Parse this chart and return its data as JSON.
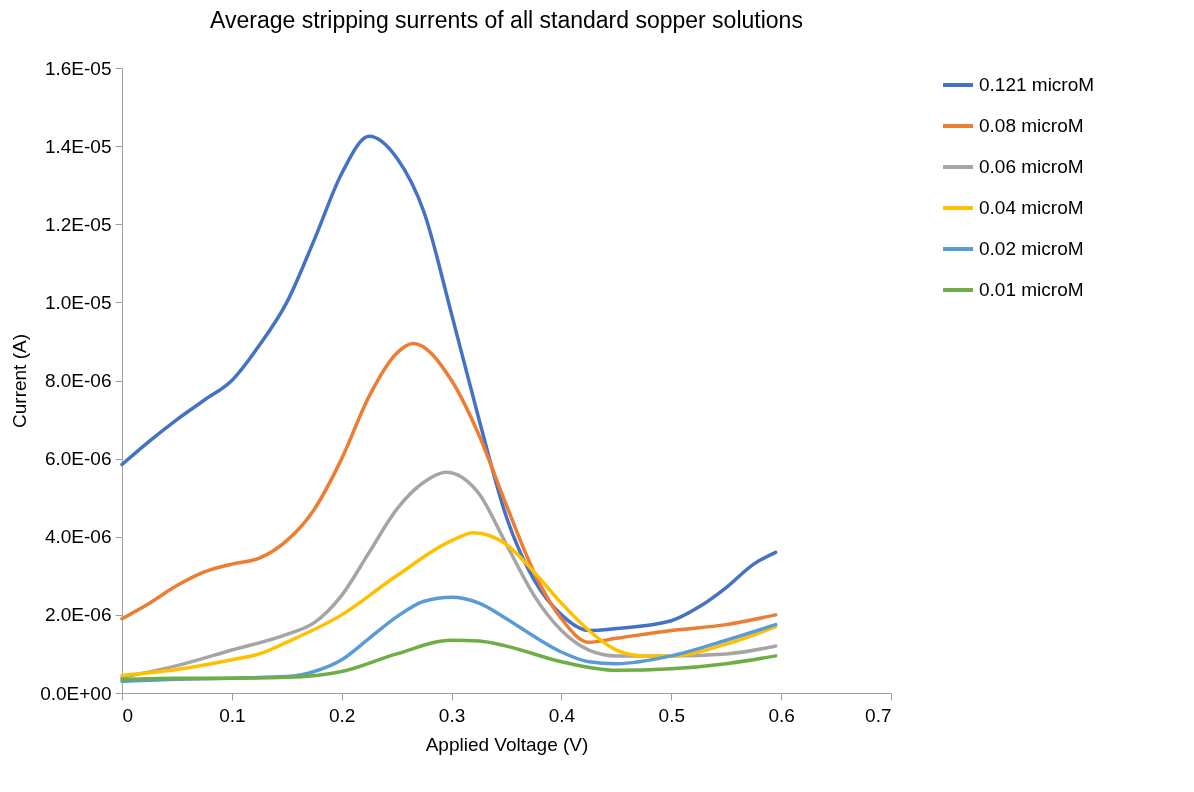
{
  "chart_data": {
    "type": "line",
    "title": "Average stripping surrents of all standard sopper solutions",
    "xlabel": "Applied Voltage (V)",
    "ylabel": "Current (A)",
    "xlim": [
      0,
      0.7
    ],
    "xticks": [
      0,
      0.1,
      0.2,
      0.3,
      0.4,
      0.5,
      0.6,
      0.7
    ],
    "ylim": [
      0,
      1.6e-05
    ],
    "yticks": [
      {
        "value": 0,
        "label": "0.0E+00"
      },
      {
        "value": 2e-06,
        "label": "2.0E-06"
      },
      {
        "value": 4e-06,
        "label": "4.0E-06"
      },
      {
        "value": 6e-06,
        "label": "6.0E-06"
      },
      {
        "value": 8e-06,
        "label": "8.0E-06"
      },
      {
        "value": 1e-05,
        "label": "1.0E-05"
      },
      {
        "value": 1.2e-05,
        "label": "1.2E-05"
      },
      {
        "value": 1.4e-05,
        "label": "1.4E-05"
      },
      {
        "value": 1.6e-05,
        "label": "1.6E-05"
      }
    ],
    "grid": false,
    "legend": "right",
    "marker": "none",
    "line_style": "solid",
    "series": [
      {
        "name": "0.121 microM",
        "color": "#4472c4",
        "x": [
          0,
          0.025,
          0.05,
          0.075,
          0.1,
          0.125,
          0.15,
          0.175,
          0.2,
          0.225,
          0.25,
          0.275,
          0.3,
          0.325,
          0.35,
          0.375,
          0.4,
          0.425,
          0.45,
          0.5,
          0.525,
          0.55,
          0.575,
          0.595
        ],
        "values": [
          5.85e-06,
          6.45e-06,
          7e-06,
          7.5e-06,
          8e-06,
          8.9e-06,
          1e-05,
          1.16e-05,
          1.33e-05,
          1.425e-05,
          1.37e-05,
          1.23e-05,
          9.7e-06,
          7e-06,
          4.5e-06,
          2.9e-06,
          2e-06,
          1.6e-06,
          1.65e-06,
          1.85e-06,
          2.2e-06,
          2.7e-06,
          3.3e-06,
          3.6e-06
        ]
      },
      {
        "name": "0.08 microM",
        "color": "#ed7d31",
        "x": [
          0,
          0.025,
          0.05,
          0.075,
          0.1,
          0.125,
          0.15,
          0.175,
          0.2,
          0.225,
          0.25,
          0.265,
          0.3,
          0.325,
          0.35,
          0.375,
          0.4,
          0.425,
          0.45,
          0.5,
          0.55,
          0.595
        ],
        "values": [
          1.9e-06,
          2.3e-06,
          2.75e-06,
          3.1e-06,
          3.3e-06,
          3.45e-06,
          3.9e-06,
          4.7e-06,
          6e-06,
          7.6e-06,
          8.7e-06,
          8.95e-06,
          8e-06,
          6.6e-06,
          4.8e-06,
          3.1e-06,
          1.9e-06,
          1.3e-06,
          1.4e-06,
          1.6e-06,
          1.75e-06,
          2e-06
        ]
      },
      {
        "name": "0.06 microM",
        "color": "#a5a5a5",
        "x": [
          0,
          0.05,
          0.1,
          0.15,
          0.175,
          0.2,
          0.225,
          0.25,
          0.275,
          0.295,
          0.325,
          0.35,
          0.375,
          0.4,
          0.425,
          0.45,
          0.5,
          0.55,
          0.595
        ],
        "values": [
          4e-07,
          7e-07,
          1.1e-06,
          1.5e-06,
          1.8e-06,
          2.5e-06,
          3.6e-06,
          4.7e-06,
          5.4e-06,
          5.65e-06,
          5.1e-06,
          3.8e-06,
          2.5e-06,
          1.6e-06,
          1.1e-06,
          9.5e-07,
          9.5e-07,
          1e-06,
          1.2e-06
        ]
      },
      {
        "name": "0.04 microM",
        "color": "#ffc000",
        "x": [
          0,
          0.05,
          0.1,
          0.125,
          0.15,
          0.2,
          0.25,
          0.3,
          0.32,
          0.35,
          0.375,
          0.4,
          0.425,
          0.45,
          0.475,
          0.5,
          0.55,
          0.595
        ],
        "values": [
          4.5e-07,
          6e-07,
          8.5e-07,
          1e-06,
          1.3e-06,
          2e-06,
          3e-06,
          3.9e-06,
          4.1e-06,
          3.8e-06,
          3.1e-06,
          2.3e-06,
          1.6e-06,
          1.1e-06,
          9.5e-07,
          9.5e-07,
          1.25e-06,
          1.7e-06
        ]
      },
      {
        "name": "0.02 microM",
        "color": "#5b9bd5",
        "x": [
          0,
          0.05,
          0.1,
          0.15,
          0.175,
          0.2,
          0.225,
          0.25,
          0.275,
          0.3,
          0.325,
          0.35,
          0.375,
          0.4,
          0.425,
          0.45,
          0.5,
          0.55,
          0.595
        ],
        "values": [
          3e-07,
          3.5e-07,
          3.8e-07,
          4.2e-07,
          5.5e-07,
          8.5e-07,
          1.4e-06,
          1.95e-06,
          2.35e-06,
          2.45e-06,
          2.3e-06,
          1.9e-06,
          1.45e-06,
          1.05e-06,
          8e-07,
          7.5e-07,
          9.5e-07,
          1.35e-06,
          1.75e-06
        ]
      },
      {
        "name": "0.01 microM",
        "color": "#70ad47",
        "x": [
          0,
          0.05,
          0.1,
          0.15,
          0.2,
          0.25,
          0.3,
          0.325,
          0.35,
          0.4,
          0.45,
          0.5,
          0.55,
          0.595
        ],
        "values": [
          3.5e-07,
          3.8e-07,
          3.8e-07,
          4e-07,
          5.5e-07,
          1e-06,
          1.35e-06,
          1.33e-06,
          1.2e-06,
          8e-07,
          5.8e-07,
          6.2e-07,
          7.5e-07,
          9.5e-07
        ]
      }
    ]
  }
}
